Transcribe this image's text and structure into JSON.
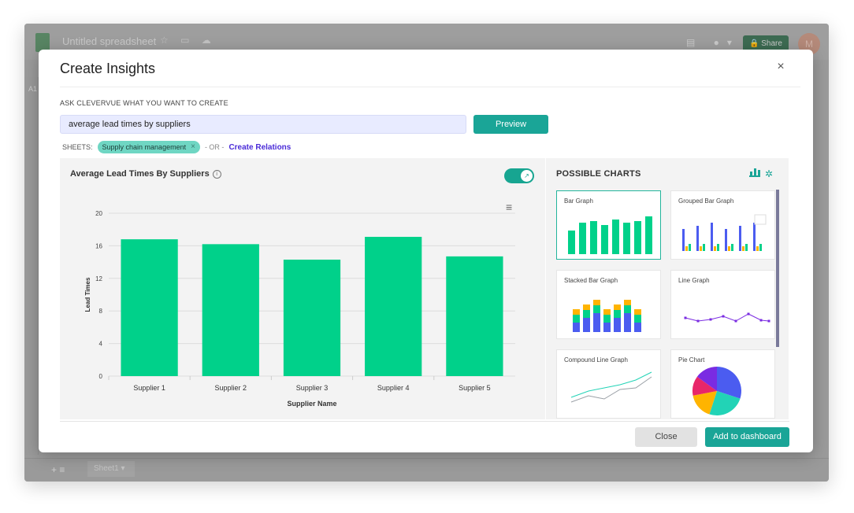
{
  "background_app": {
    "doc_title": "Untitled spreadsheet",
    "share_label": "Share",
    "avatar_initial": "M",
    "cell_ref": "A1",
    "sheet_tab": "Sheet1"
  },
  "modal": {
    "title": "Create Insights",
    "ask_label": "ASK CLEVERVUE WHAT YOU WANT TO CREATE",
    "query_value": "average lead times by suppliers",
    "preview_label": "Preview",
    "sheets_label": "SHEETS:",
    "sheet_chip": "Supply chain management",
    "or_text": "- OR -",
    "relations_link": "Create Relations",
    "close_label": "Close",
    "add_label": "Add to dashboard"
  },
  "possible_charts": {
    "title": "POSSIBLE CHARTS",
    "items": [
      {
        "label": "Bar Graph",
        "kind": "bar"
      },
      {
        "label": "Grouped Bar Graph",
        "kind": "grouped"
      },
      {
        "label": "Stacked Bar Graph",
        "kind": "stacked"
      },
      {
        "label": "Line Graph",
        "kind": "line"
      },
      {
        "label": "Compound Line Graph",
        "kind": "compound"
      },
      {
        "label": "Pie Chart",
        "kind": "pie"
      }
    ]
  },
  "colors": {
    "accent": "#1aa597",
    "bar": "#00d18a",
    "link": "#4a2bd8"
  },
  "chart_data": {
    "type": "bar",
    "title": "Average Lead Times By Suppliers",
    "categories": [
      "Supplier 1",
      "Supplier 2",
      "Supplier 3",
      "Supplier 4",
      "Supplier 5"
    ],
    "values": [
      16.8,
      16.2,
      14.3,
      17.1,
      14.7
    ],
    "xlabel": "Supplier Name",
    "ylabel": "Lead Times",
    "ylim": [
      0,
      20
    ],
    "yticks": [
      0,
      4,
      8,
      12,
      16,
      20
    ],
    "grid": true
  }
}
